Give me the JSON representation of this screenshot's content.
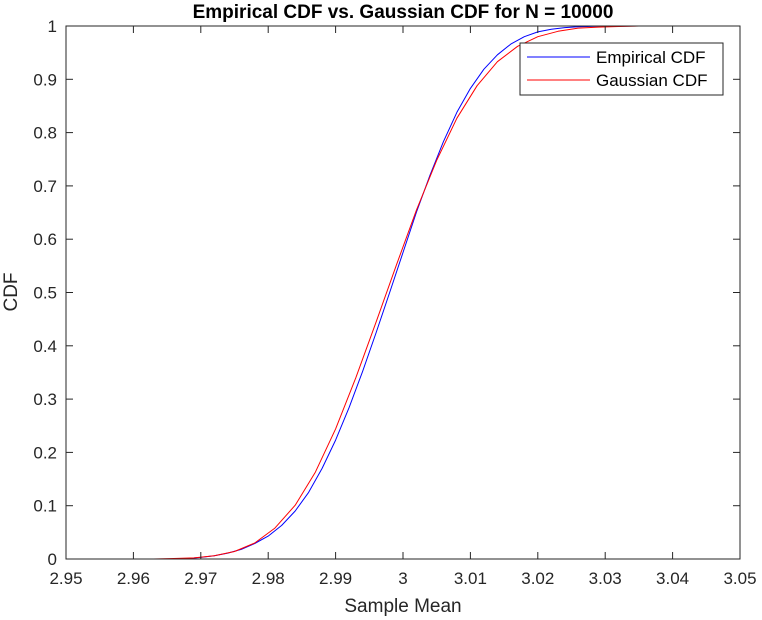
{
  "chart_data": {
    "type": "line",
    "title": "Empirical CDF vs. Gaussian CDF for N = 10000",
    "xlabel": "Sample Mean",
    "ylabel": "CDF",
    "xlim": [
      2.95,
      3.05
    ],
    "ylim": [
      0,
      1
    ],
    "x_ticks": [
      "2.95",
      "2.96",
      "2.97",
      "2.98",
      "2.99",
      "3",
      "3.01",
      "3.02",
      "3.03",
      "3.04",
      "3.05"
    ],
    "y_ticks": [
      "0",
      "0.1",
      "0.2",
      "0.3",
      "0.4",
      "0.5",
      "0.6",
      "0.7",
      "0.8",
      "0.9",
      "1"
    ],
    "grid": false,
    "legend_position": "top-right",
    "series": [
      {
        "name": "Empirical CDF",
        "color": "#0000ff",
        "x": [
          2.966,
          2.968,
          2.97,
          2.972,
          2.974,
          2.976,
          2.978,
          2.98,
          2.982,
          2.984,
          2.986,
          2.988,
          2.99,
          2.992,
          2.994,
          2.996,
          2.998,
          3.0,
          3.002,
          3.004,
          3.006,
          3.008,
          3.01,
          3.012,
          3.014,
          3.016,
          3.018,
          3.02,
          3.022,
          3.024,
          3.026,
          3.028,
          3.03,
          3.032,
          3.034
        ],
        "y": [
          0.0,
          0.001,
          0.003,
          0.006,
          0.011,
          0.018,
          0.029,
          0.043,
          0.063,
          0.09,
          0.125,
          0.17,
          0.223,
          0.284,
          0.352,
          0.424,
          0.499,
          0.575,
          0.651,
          0.72,
          0.783,
          0.838,
          0.883,
          0.919,
          0.946,
          0.966,
          0.98,
          0.989,
          0.994,
          0.997,
          0.9985,
          0.9993,
          0.9997,
          0.9999,
          1.0
        ]
      },
      {
        "name": "Gaussian CDF",
        "color": "#ff0000",
        "x": [
          2.957,
          2.96,
          2.963,
          2.966,
          2.969,
          2.972,
          2.975,
          2.978,
          2.981,
          2.984,
          2.987,
          2.99,
          2.993,
          2.996,
          2.999,
          3.002,
          3.005,
          3.008,
          3.011,
          3.014,
          3.017,
          3.02,
          3.023,
          3.026,
          3.029,
          3.032,
          3.035,
          3.038,
          3.041,
          3.043
        ],
        "y": [
          0.0,
          0.0,
          0.0,
          0.001,
          0.002,
          0.006,
          0.014,
          0.03,
          0.058,
          0.101,
          0.163,
          0.244,
          0.34,
          0.444,
          0.551,
          0.655,
          0.748,
          0.827,
          0.888,
          0.933,
          0.962,
          0.98,
          0.99,
          0.996,
          0.998,
          0.999,
          1.0,
          1.0,
          1.0,
          1.0
        ]
      }
    ]
  }
}
